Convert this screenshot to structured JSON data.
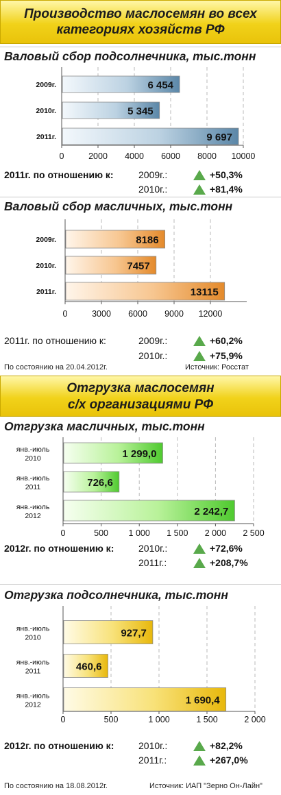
{
  "banner1": {
    "line1": "Производство маслосемян во всех",
    "line2": "категориях хозяйств РФ"
  },
  "banner2": {
    "line1": "Отгрузка маслосемян",
    "line2": "с/х организациями РФ"
  },
  "colors": {
    "blue": "#5b87a8",
    "orange": "#e48a2b",
    "green": "#4fca2f",
    "yellow": "#e8b80c",
    "arrow_up": "#59a94b",
    "banner": "#f1d21a"
  },
  "icons": {
    "increase": "up-triangle-icon"
  },
  "chart_data": [
    {
      "type": "bar",
      "orientation": "horizontal",
      "title": "Валовый сбор подсолнечника, тыс.тонн",
      "categories": [
        "2009г.",
        "2010г.",
        "2011г."
      ],
      "values": [
        6454,
        5345,
        9697
      ],
      "value_labels": [
        "6 454",
        "5 345",
        "9 697"
      ],
      "xlim": [
        0,
        10000
      ],
      "xticks": [
        "0",
        "2000",
        "4000",
        "6000",
        "8000",
        "10000"
      ],
      "grid": "vertical dashed",
      "color": "#5b87a8"
    },
    {
      "type": "bar",
      "orientation": "horizontal",
      "title": "Валовый сбор масличных, тыс.тонн",
      "categories": [
        "2009г.",
        "2010г.",
        "2011г."
      ],
      "values": [
        8186,
        7457,
        13115
      ],
      "value_labels": [
        "8186",
        "7457",
        "13115"
      ],
      "xlim": [
        0,
        15000
      ],
      "xticks": [
        "0",
        "3000",
        "6000",
        "9000",
        "12000"
      ],
      "grid": "vertical dashed",
      "color": "#e48a2b"
    },
    {
      "type": "bar",
      "orientation": "horizontal",
      "title": "Отгрузка масличных, тыс.тонн",
      "categories": [
        [
          "янв.-июль",
          "2010"
        ],
        [
          "янв.-июль",
          "2011"
        ],
        [
          "янв.-июль",
          "2012"
        ]
      ],
      "values": [
        1299.0,
        726.6,
        2242.7
      ],
      "value_labels": [
        "1 299,0",
        "726,6",
        "2 242,7"
      ],
      "xlim": [
        0,
        2500
      ],
      "xticks": [
        "0",
        "500",
        "1 000",
        "1 500",
        "2 000",
        "2 500"
      ],
      "grid": "vertical dashed",
      "color": "#4fca2f"
    },
    {
      "type": "bar",
      "orientation": "horizontal",
      "title": "Отгрузка подсолнечника, тыс.тонн",
      "categories": [
        [
          "янв.-июль",
          "2010"
        ],
        [
          "янв.-июль",
          "2011"
        ],
        [
          "янв.-июль",
          "2012"
        ]
      ],
      "values": [
        927.7,
        460.6,
        1690.4
      ],
      "value_labels": [
        "927,7",
        "460,6",
        "1 690,4"
      ],
      "xlim": [
        0,
        2000
      ],
      "xticks": [
        "0",
        "500",
        "1 000",
        "1 500",
        "2 000"
      ],
      "grid": "vertical dashed",
      "color": "#e8b80c"
    }
  ],
  "comparisons": [
    {
      "label": "2011г. по отношению к:",
      "rows": [
        {
          "year": "2009г.:",
          "value": "+50,3%"
        },
        {
          "year": "2010г.:",
          "value": "+81,4%"
        }
      ]
    },
    {
      "label": "2011г. по отношению к:",
      "rows": [
        {
          "year": "2009г.:",
          "value": "+60,2%"
        },
        {
          "year": "2010г.:",
          "value": "+75,9%"
        }
      ]
    },
    {
      "label": "2012г. по отношению к:",
      "rows": [
        {
          "year": "2010г.:",
          "value": "+72,6%"
        },
        {
          "year": "2011г.:",
          "value": "+208,7%"
        }
      ]
    },
    {
      "label": "2012г. по отношению к:",
      "rows": [
        {
          "year": "2010г.:",
          "value": "+82,2%"
        },
        {
          "year": "2011г.:",
          "value": "+267,0%"
        }
      ]
    }
  ],
  "footers": [
    {
      "date": "По состоянию на 20.04.2012г.",
      "source": "Источник: Росстат"
    },
    {
      "date": "По состоянию на 18.08.2012г.",
      "source": "Источник: ИАП \"Зерно Он-Лайн\""
    }
  ]
}
